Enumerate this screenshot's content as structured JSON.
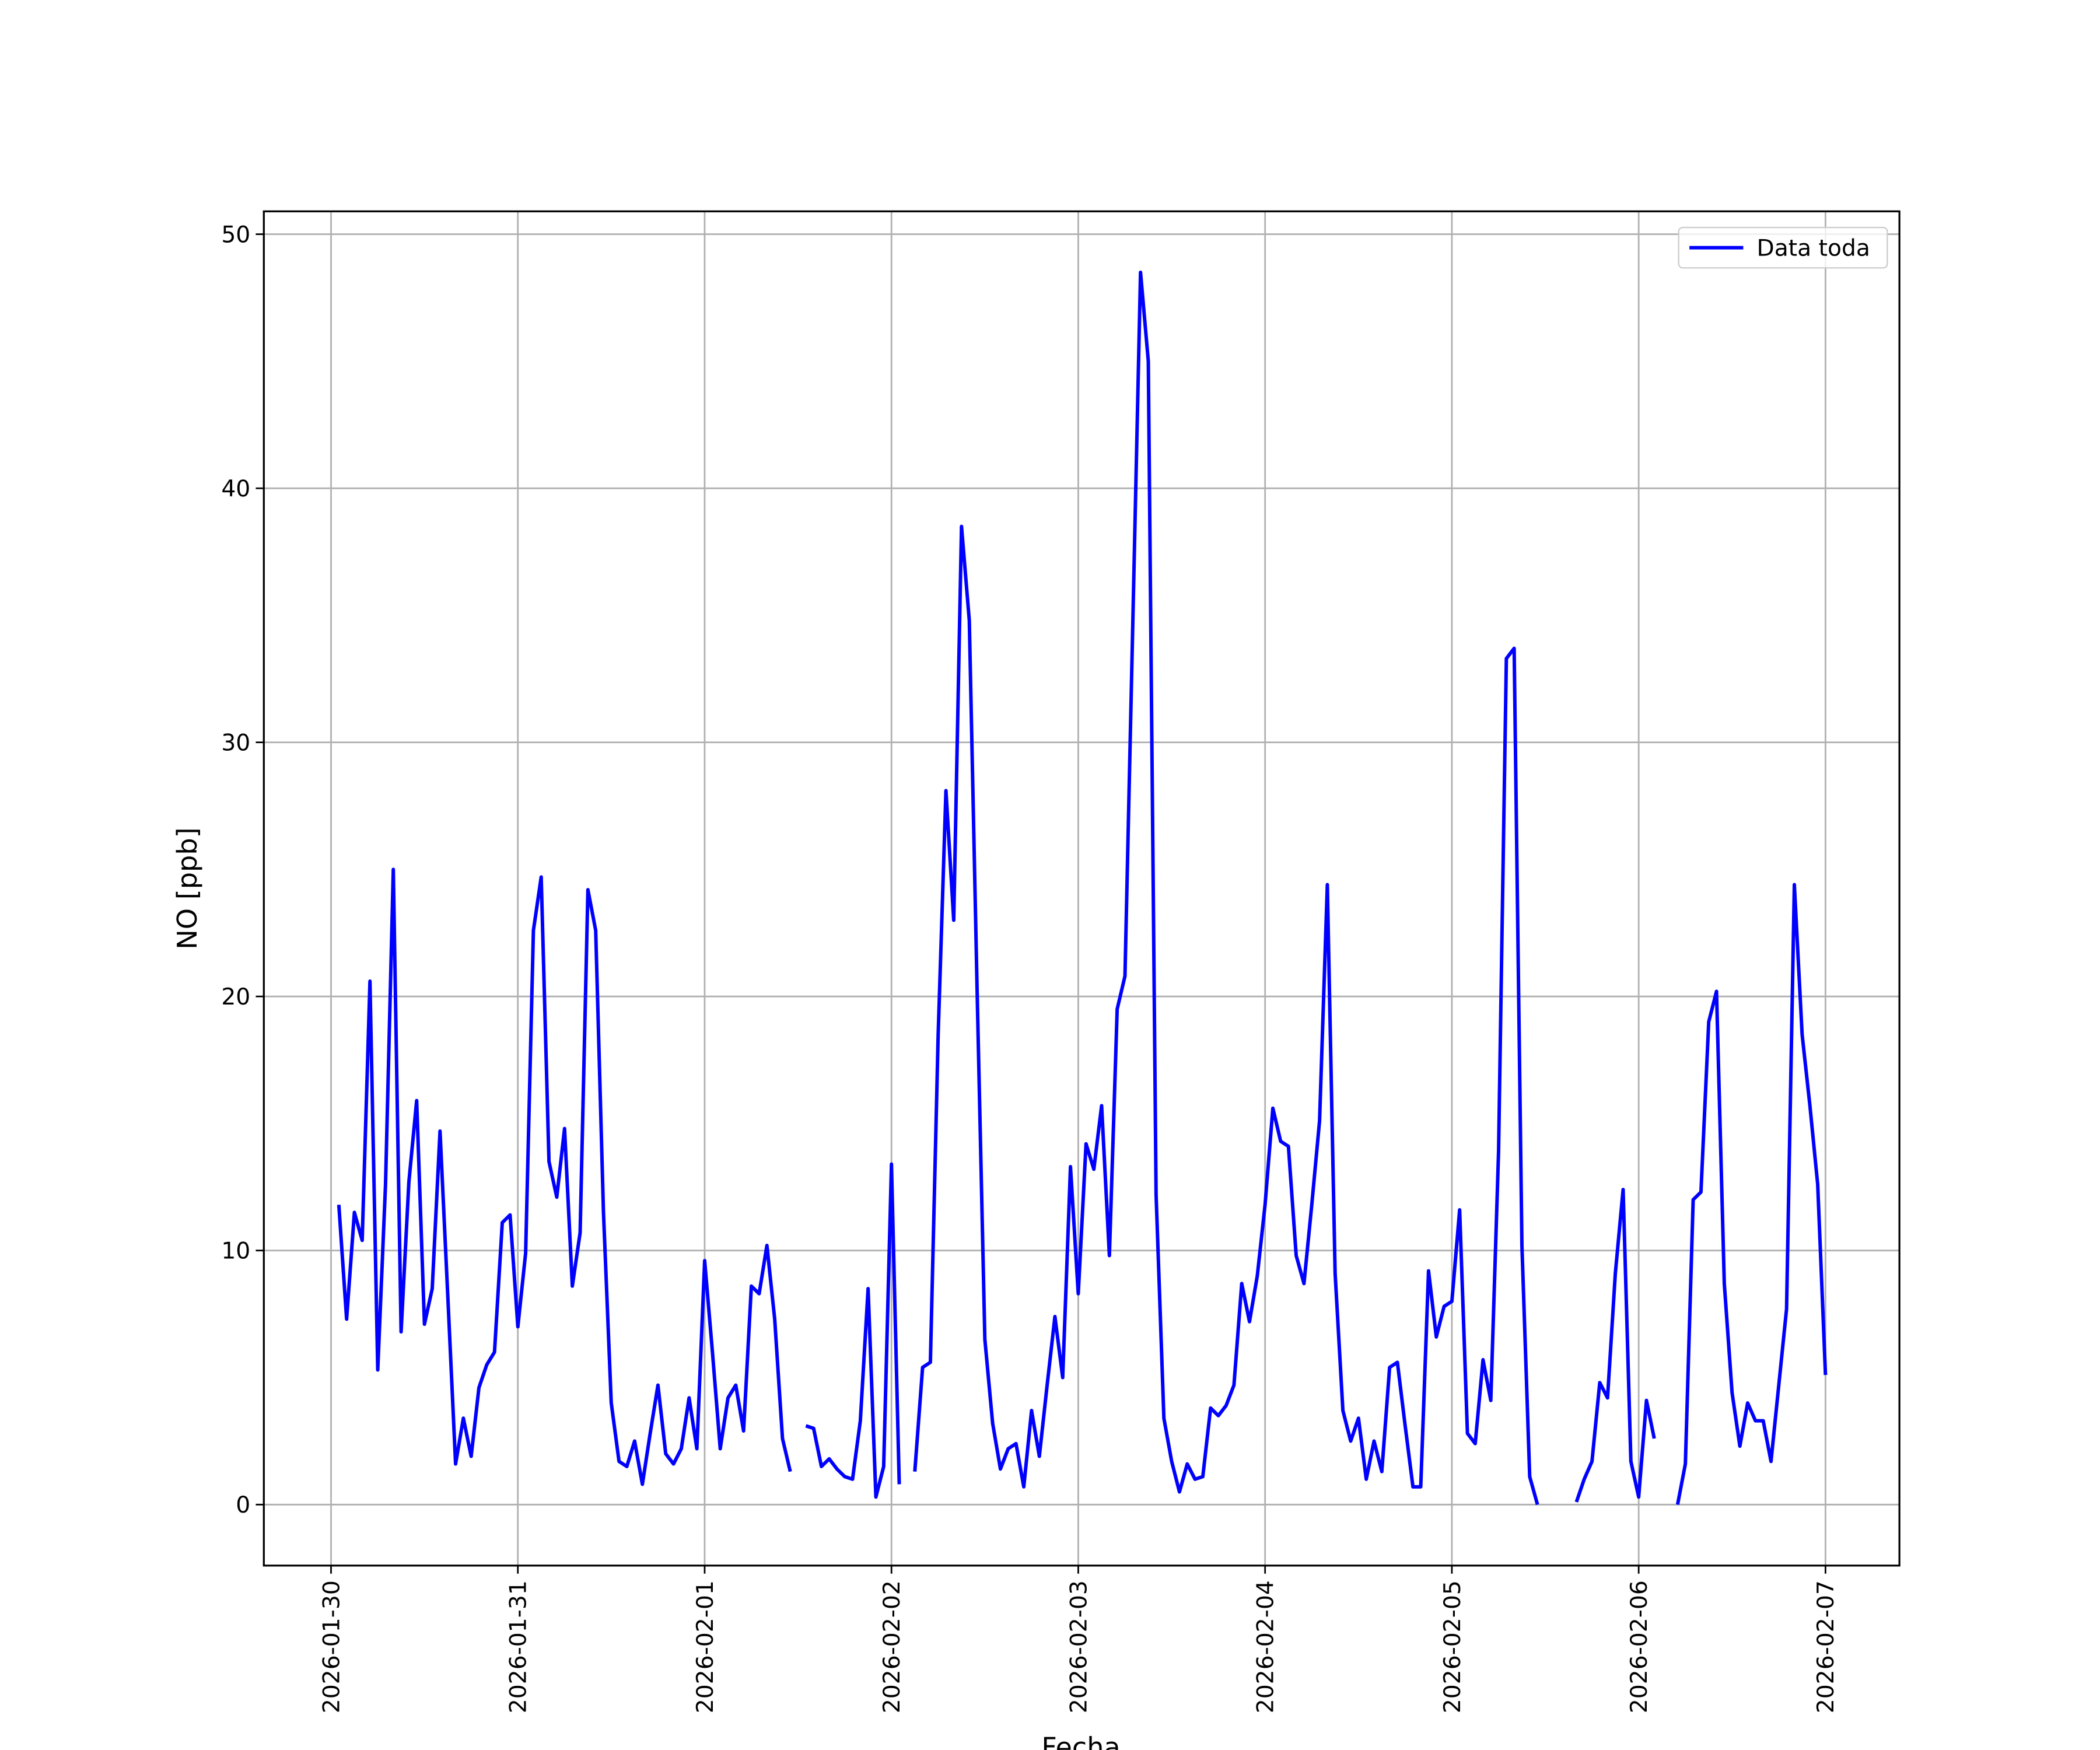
{
  "chart_data": {
    "type": "line",
    "x_label": "Fecha",
    "y_label": "NO [ppb]",
    "x": [
      "2026-01-30 01:00",
      "2026-01-30 02:00",
      "2026-01-30 03:00",
      "2026-01-30 04:00",
      "2026-01-30 05:00",
      "2026-01-30 06:00",
      "2026-01-30 07:00",
      "2026-01-30 08:00",
      "2026-01-30 09:00",
      "2026-01-30 10:00",
      "2026-01-30 11:00",
      "2026-01-30 12:00",
      "2026-01-30 13:00",
      "2026-01-30 14:00",
      "2026-01-30 15:00",
      "2026-01-30 16:00",
      "2026-01-30 17:00",
      "2026-01-30 18:00",
      "2026-01-30 19:00",
      "2026-01-30 20:00",
      "2026-01-30 21:00",
      "2026-01-30 22:00",
      "2026-01-30 23:00",
      "2026-01-31 00:00",
      "2026-01-31 01:00",
      "2026-01-31 02:00",
      "2026-01-31 03:00",
      "2026-01-31 04:00",
      "2026-01-31 05:00",
      "2026-01-31 06:00",
      "2026-01-31 07:00",
      "2026-01-31 08:00",
      "2026-01-31 09:00",
      "2026-01-31 10:00",
      "2026-01-31 11:00",
      "2026-01-31 12:00",
      "2026-01-31 13:00",
      "2026-01-31 14:00",
      "2026-01-31 15:00",
      "2026-01-31 16:00",
      "2026-01-31 17:00",
      "2026-01-31 18:00",
      "2026-01-31 19:00",
      "2026-01-31 20:00",
      "2026-01-31 21:00",
      "2026-01-31 22:00",
      "2026-01-31 23:00",
      "2026-02-01 00:00",
      "2026-02-01 01:00",
      "2026-02-01 02:00",
      "2026-02-01 03:00",
      "2026-02-01 04:00",
      "2026-02-01 05:00",
      "2026-02-01 06:00",
      "2026-02-01 07:00",
      "2026-02-01 08:00",
      "2026-02-01 09:00",
      "2026-02-01 10:00",
      "2026-02-01 11:00",
      "2026-02-01 12:00",
      "2026-02-01 13:00",
      "2026-02-01 14:00",
      "2026-02-01 15:00",
      "2026-02-01 16:00",
      "2026-02-01 17:00",
      "2026-02-01 18:00",
      "2026-02-01 19:00",
      "2026-02-01 20:00",
      "2026-02-01 21:00",
      "2026-02-01 22:00",
      "2026-02-01 23:00",
      "2026-02-02 00:00",
      "2026-02-02 01:00",
      "2026-02-02 02:00",
      "2026-02-02 03:00",
      "2026-02-02 04:00",
      "2026-02-02 05:00",
      "2026-02-02 06:00",
      "2026-02-02 07:00",
      "2026-02-02 08:00",
      "2026-02-02 09:00",
      "2026-02-02 10:00",
      "2026-02-02 11:00",
      "2026-02-02 12:00",
      "2026-02-02 13:00",
      "2026-02-02 14:00",
      "2026-02-02 15:00",
      "2026-02-02 16:00",
      "2026-02-02 17:00",
      "2026-02-02 18:00",
      "2026-02-02 19:00",
      "2026-02-02 20:00",
      "2026-02-02 21:00",
      "2026-02-02 22:00",
      "2026-02-02 23:00",
      "2026-02-03 00:00",
      "2026-02-03 01:00",
      "2026-02-03 02:00",
      "2026-02-03 03:00",
      "2026-02-03 04:00",
      "2026-02-03 05:00",
      "2026-02-03 06:00",
      "2026-02-03 07:00",
      "2026-02-03 08:00",
      "2026-02-03 09:00",
      "2026-02-03 10:00",
      "2026-02-03 11:00",
      "2026-02-03 12:00",
      "2026-02-03 13:00",
      "2026-02-03 14:00",
      "2026-02-03 15:00",
      "2026-02-03 16:00",
      "2026-02-03 17:00",
      "2026-02-03 18:00",
      "2026-02-03 19:00",
      "2026-02-03 20:00",
      "2026-02-03 21:00",
      "2026-02-03 22:00",
      "2026-02-03 23:00",
      "2026-02-04 00:00",
      "2026-02-04 01:00",
      "2026-02-04 02:00",
      "2026-02-04 03:00",
      "2026-02-04 04:00",
      "2026-02-04 05:00",
      "2026-02-04 06:00",
      "2026-02-04 07:00",
      "2026-02-04 08:00",
      "2026-02-04 09:00",
      "2026-02-04 10:00",
      "2026-02-04 11:00",
      "2026-02-04 12:00",
      "2026-02-04 13:00",
      "2026-02-04 14:00",
      "2026-02-04 15:00",
      "2026-02-04 16:00",
      "2026-02-04 17:00",
      "2026-02-04 18:00",
      "2026-02-04 19:00",
      "2026-02-04 20:00",
      "2026-02-04 21:00",
      "2026-02-04 22:00",
      "2026-02-04 23:00",
      "2026-02-05 00:00",
      "2026-02-05 01:00",
      "2026-02-05 02:00",
      "2026-02-05 03:00",
      "2026-02-05 04:00",
      "2026-02-05 05:00",
      "2026-02-05 06:00",
      "2026-02-05 07:00",
      "2026-02-05 08:00",
      "2026-02-05 09:00",
      "2026-02-05 10:00",
      "2026-02-05 11:00",
      "2026-02-05 12:00",
      "2026-02-05 13:00",
      "2026-02-05 14:00",
      "2026-02-05 15:00",
      "2026-02-05 16:00",
      "2026-02-05 17:00",
      "2026-02-05 18:00",
      "2026-02-05 19:00",
      "2026-02-05 20:00",
      "2026-02-05 21:00",
      "2026-02-05 22:00",
      "2026-02-05 23:00",
      "2026-02-06 00:00",
      "2026-02-06 01:00",
      "2026-02-06 02:00",
      "2026-02-06 03:00",
      "2026-02-06 04:00",
      "2026-02-06 05:00",
      "2026-02-06 06:00",
      "2026-02-06 07:00",
      "2026-02-06 08:00",
      "2026-02-06 09:00",
      "2026-02-06 10:00",
      "2026-02-06 11:00",
      "2026-02-06 12:00",
      "2026-02-06 13:00",
      "2026-02-06 14:00",
      "2026-02-06 15:00",
      "2026-02-06 16:00",
      "2026-02-06 17:00",
      "2026-02-06 18:00",
      "2026-02-06 19:00",
      "2026-02-06 20:00",
      "2026-02-06 21:00",
      "2026-02-06 22:00",
      "2026-02-06 23:00",
      "2026-02-07 00:00"
    ],
    "series": [
      {
        "name": "Data toda",
        "color": "#0000ff",
        "values": [
          11.8,
          7.3,
          11.5,
          10.4,
          20.6,
          5.3,
          12.6,
          25.0,
          6.8,
          12.7,
          15.9,
          7.1,
          8.5,
          14.7,
          8.2,
          1.6,
          3.4,
          1.9,
          4.6,
          5.5,
          6.0,
          11.1,
          11.4,
          7.0,
          9.9,
          22.6,
          24.7,
          13.5,
          12.1,
          14.8,
          8.6,
          10.7,
          24.2,
          22.6,
          11.5,
          4.0,
          1.7,
          1.5,
          2.5,
          0.8,
          2.8,
          4.7,
          2.0,
          1.6,
          2.2,
          4.2,
          2.2,
          9.6,
          6.0,
          2.2,
          4.2,
          4.7,
          2.9,
          8.6,
          8.3,
          10.2,
          7.3,
          2.6,
          1.3,
          null,
          3.1,
          3.0,
          1.5,
          1.8,
          1.4,
          1.1,
          1.0,
          3.3,
          8.5,
          0.3,
          1.5,
          13.4,
          0.8,
          null,
          1.3,
          5.4,
          5.6,
          18.5,
          28.1,
          23.0,
          38.5,
          34.8,
          20.3,
          6.5,
          3.2,
          1.4,
          2.2,
          2.4,
          0.7,
          3.7,
          1.9,
          4.7,
          7.4,
          5.0,
          13.3,
          8.3,
          14.2,
          13.2,
          15.7,
          9.8,
          19.5,
          20.8,
          34.6,
          48.5,
          45.0,
          12.2,
          3.4,
          1.7,
          0.5,
          1.6,
          1.0,
          1.1,
          3.8,
          3.5,
          3.9,
          4.7,
          8.7,
          7.2,
          9.0,
          11.8,
          15.6,
          14.3,
          14.1,
          9.8,
          8.7,
          11.8,
          15.1,
          24.4,
          9.1,
          3.7,
          2.5,
          3.4,
          1.0,
          2.5,
          1.3,
          5.4,
          5.6,
          3.1,
          0.7,
          0.7,
          9.2,
          6.6,
          7.8,
          8.0,
          11.6,
          2.8,
          2.4,
          5.7,
          4.1,
          13.9,
          33.3,
          33.7,
          10.2,
          1.1,
          0.0,
          null,
          null,
          null,
          null,
          0.1,
          1.0,
          1.7,
          4.8,
          4.2,
          9.1,
          12.4,
          1.7,
          0.3,
          4.1,
          2.6,
          null,
          null,
          0.0,
          1.6,
          12.0,
          12.3,
          19.0,
          20.2,
          8.7,
          4.4,
          2.3,
          4.0,
          3.3,
          3.3,
          1.7,
          4.7,
          7.7,
          24.4,
          18.5,
          15.7,
          12.6,
          5.1
        ]
      }
    ],
    "xlim": [
      "2026-01-29 15:22",
      "2026-02-07 09:30"
    ],
    "xticks": [
      "2026-01-30",
      "2026-01-31",
      "2026-02-01",
      "2026-02-02",
      "2026-02-03",
      "2026-02-04",
      "2026-02-05",
      "2026-02-06",
      "2026-02-07"
    ],
    "ylim": [
      -2.4,
      50.9
    ],
    "yticks": [
      0,
      10,
      20,
      30,
      40,
      50
    ],
    "grid": true,
    "legend_loc": "upper right"
  }
}
